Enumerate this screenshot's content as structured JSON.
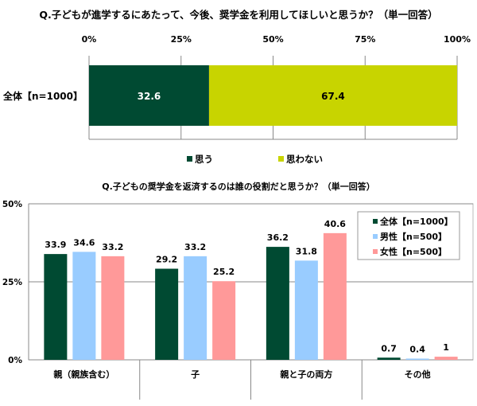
{
  "colors": {
    "yes": "#004a32",
    "no": "#c8d400",
    "total": "#004a32",
    "male": "#99ccff",
    "female": "#ff9999"
  },
  "chart_data": [
    {
      "type": "bar",
      "orientation": "horizontal-stacked",
      "title": "Q.子どもが進学するにあたって、今後、奨学金を利用してほしいと思うか？（単一回答）",
      "categories": [
        "全体【n=1000】"
      ],
      "series": [
        {
          "name": "思う",
          "values": [
            32.6
          ]
        },
        {
          "name": "思わない",
          "values": [
            67.4
          ]
        }
      ],
      "tick_labels": [
        "0%",
        "25%",
        "50%",
        "75%",
        "100%"
      ],
      "xlim": [
        0,
        100
      ],
      "grid": true,
      "legend": "bottom"
    },
    {
      "type": "bar",
      "title": "Q.子どもの奨学金を返済するのは誰の役割だと思うか？（単一回答）",
      "categories": [
        "親（親族含む）",
        "子",
        "親と子の両方",
        "その他"
      ],
      "series": [
        {
          "name": "全体【n=1000】",
          "values": [
            33.9,
            29.2,
            36.2,
            0.7
          ]
        },
        {
          "name": "男性【n=500】",
          "values": [
            34.6,
            33.2,
            31.8,
            0.4
          ]
        },
        {
          "name": "女性【n=500】",
          "values": [
            33.2,
            25.2,
            40.6,
            1.0
          ]
        }
      ],
      "tick_labels": [
        "0%",
        "25%",
        "50%"
      ],
      "ylim": [
        0,
        50
      ],
      "grid": true,
      "legend": "top-right"
    }
  ]
}
